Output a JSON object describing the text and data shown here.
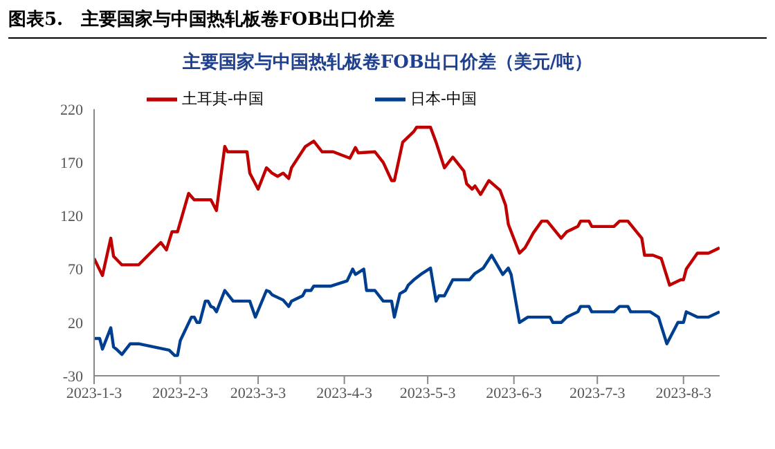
{
  "chart_data": {
    "type": "line",
    "title": "图表5.　主要国家与中国热轧板卷FOB出口价差",
    "subtitle": "主要国家与中国热轧板卷FOB出口价差（美元/吨）",
    "xlim": [
      "2023-01-03",
      "2023-08-16"
    ],
    "ylim": [
      -30,
      220
    ],
    "yticks": [
      -30,
      20,
      70,
      120,
      170,
      220
    ],
    "xticks": [
      {
        "value": "2023-01-03",
        "label": "2023-1-3"
      },
      {
        "value": "2023-02-03",
        "label": "2023-2-3"
      },
      {
        "value": "2023-03-03",
        "label": "2023-3-3"
      },
      {
        "value": "2023-04-03",
        "label": "2023-4-3"
      },
      {
        "value": "2023-05-03",
        "label": "2023-5-3"
      },
      {
        "value": "2023-06-03",
        "label": "2023-6-3"
      },
      {
        "value": "2023-07-03",
        "label": "2023-7-3"
      },
      {
        "value": "2023-08-03",
        "label": "2023-8-3"
      }
    ],
    "legend": "top",
    "marker": "none",
    "series": [
      {
        "name": "日本-中国",
        "color": "#003f8f",
        "x": [
          "2023-01-03",
          "2023-01-05",
          "2023-01-06",
          "2023-01-09",
          "2023-01-10",
          "2023-01-11",
          "2023-01-13",
          "2023-01-16",
          "2023-01-19",
          "2023-01-30",
          "2023-02-01",
          "2023-02-02",
          "2023-02-03",
          "2023-02-07",
          "2023-02-08",
          "2023-02-09",
          "2023-02-10",
          "2023-02-12",
          "2023-02-13",
          "2023-02-14",
          "2023-02-15",
          "2023-02-16",
          "2023-02-19",
          "2023-02-22",
          "2023-02-28",
          "2023-03-02",
          "2023-03-06",
          "2023-03-07",
          "2023-03-08",
          "2023-03-12",
          "2023-03-14",
          "2023-03-15",
          "2023-03-19",
          "2023-03-20",
          "2023-03-22",
          "2023-03-23",
          "2023-03-29",
          "2023-04-04",
          "2023-04-06",
          "2023-04-07",
          "2023-04-10",
          "2023-04-11",
          "2023-04-14",
          "2023-04-17",
          "2023-04-20",
          "2023-04-21",
          "2023-04-23",
          "2023-04-25",
          "2023-04-26",
          "2023-04-28",
          "2023-05-01",
          "2023-05-04",
          "2023-05-06",
          "2023-05-07",
          "2023-05-09",
          "2023-05-12",
          "2023-05-18",
          "2023-05-20",
          "2023-05-23",
          "2023-05-26",
          "2023-05-30",
          "2023-06-01",
          "2023-06-02",
          "2023-06-05",
          "2023-06-08",
          "2023-06-16",
          "2023-06-17",
          "2023-06-20",
          "2023-06-22",
          "2023-06-26",
          "2023-06-27",
          "2023-06-30",
          "2023-07-01",
          "2023-07-09",
          "2023-07-11",
          "2023-07-14",
          "2023-07-15",
          "2023-07-22",
          "2023-07-25",
          "2023-07-28",
          "2023-08-01",
          "2023-08-03",
          "2023-08-04",
          "2023-08-08",
          "2023-08-12",
          "2023-08-16"
        ],
        "values": [
          5,
          5,
          -5,
          15,
          -3,
          -5,
          -10,
          0,
          0,
          -6,
          -11,
          -11,
          3,
          25,
          25,
          20,
          20,
          40,
          40,
          35,
          34,
          30,
          50,
          40,
          40,
          25,
          50,
          49,
          46,
          41,
          35,
          40,
          45,
          50,
          50,
          54,
          54,
          59,
          70,
          65,
          70,
          50,
          50,
          40,
          40,
          25,
          47,
          50,
          55,
          60,
          66,
          71,
          40,
          45,
          45,
          60,
          60,
          66,
          71,
          83,
          65,
          71,
          65,
          20,
          25,
          25,
          20,
          20,
          25,
          30,
          35,
          35,
          30,
          30,
          35,
          35,
          30,
          30,
          25,
          0,
          20,
          20,
          30,
          25,
          25,
          30
        ]
      },
      {
        "name": "土耳其-中国",
        "color": "#c00000",
        "x": [
          "2023-01-03",
          "2023-01-06",
          "2023-01-09",
          "2023-01-10",
          "2023-01-13",
          "2023-01-19",
          "2023-01-27",
          "2023-01-29",
          "2023-01-31",
          "2023-02-02",
          "2023-02-06",
          "2023-02-08",
          "2023-02-14",
          "2023-02-15",
          "2023-02-16",
          "2023-02-19",
          "2023-02-20",
          "2023-02-27",
          "2023-02-28",
          "2023-03-03",
          "2023-03-06",
          "2023-03-08",
          "2023-03-10",
          "2023-03-12",
          "2023-03-14",
          "2023-03-15",
          "2023-03-20",
          "2023-03-23",
          "2023-03-26",
          "2023-03-30",
          "2023-04-05",
          "2023-04-07",
          "2023-04-08",
          "2023-04-14",
          "2023-04-17",
          "2023-04-20",
          "2023-04-21",
          "2023-04-24",
          "2023-04-26",
          "2023-04-28",
          "2023-04-29",
          "2023-05-04",
          "2023-05-06",
          "2023-05-09",
          "2023-05-12",
          "2023-05-16",
          "2023-05-17",
          "2023-05-19",
          "2023-05-20",
          "2023-05-22",
          "2023-05-25",
          "2023-05-29",
          "2023-05-31",
          "2023-06-01",
          "2023-06-05",
          "2023-06-07",
          "2023-06-10",
          "2023-06-13",
          "2023-06-15",
          "2023-06-20",
          "2023-06-22",
          "2023-06-26",
          "2023-06-27",
          "2023-06-30",
          "2023-07-01",
          "2023-07-09",
          "2023-07-11",
          "2023-07-14",
          "2023-07-19",
          "2023-07-20",
          "2023-07-23",
          "2023-07-26",
          "2023-07-29",
          "2023-08-02",
          "2023-08-03",
          "2023-08-04",
          "2023-08-08",
          "2023-08-12",
          "2023-08-16"
        ],
        "values": [
          80,
          64,
          99,
          82,
          74,
          74,
          95,
          88,
          105,
          105,
          141,
          135,
          135,
          130,
          125,
          185,
          180,
          180,
          160,
          145,
          165,
          160,
          157,
          160,
          155,
          165,
          185,
          190,
          180,
          180,
          174,
          184,
          179,
          180,
          170,
          153,
          153,
          189,
          194,
          199,
          203,
          203,
          189,
          165,
          175,
          162,
          150,
          145,
          148,
          140,
          153,
          144,
          130,
          112,
          85,
          90,
          104,
          115,
          115,
          99,
          105,
          110,
          115,
          115,
          110,
          110,
          115,
          115,
          99,
          83,
          83,
          80,
          55,
          60,
          60,
          70,
          85,
          85,
          90
        ]
      }
    ]
  }
}
